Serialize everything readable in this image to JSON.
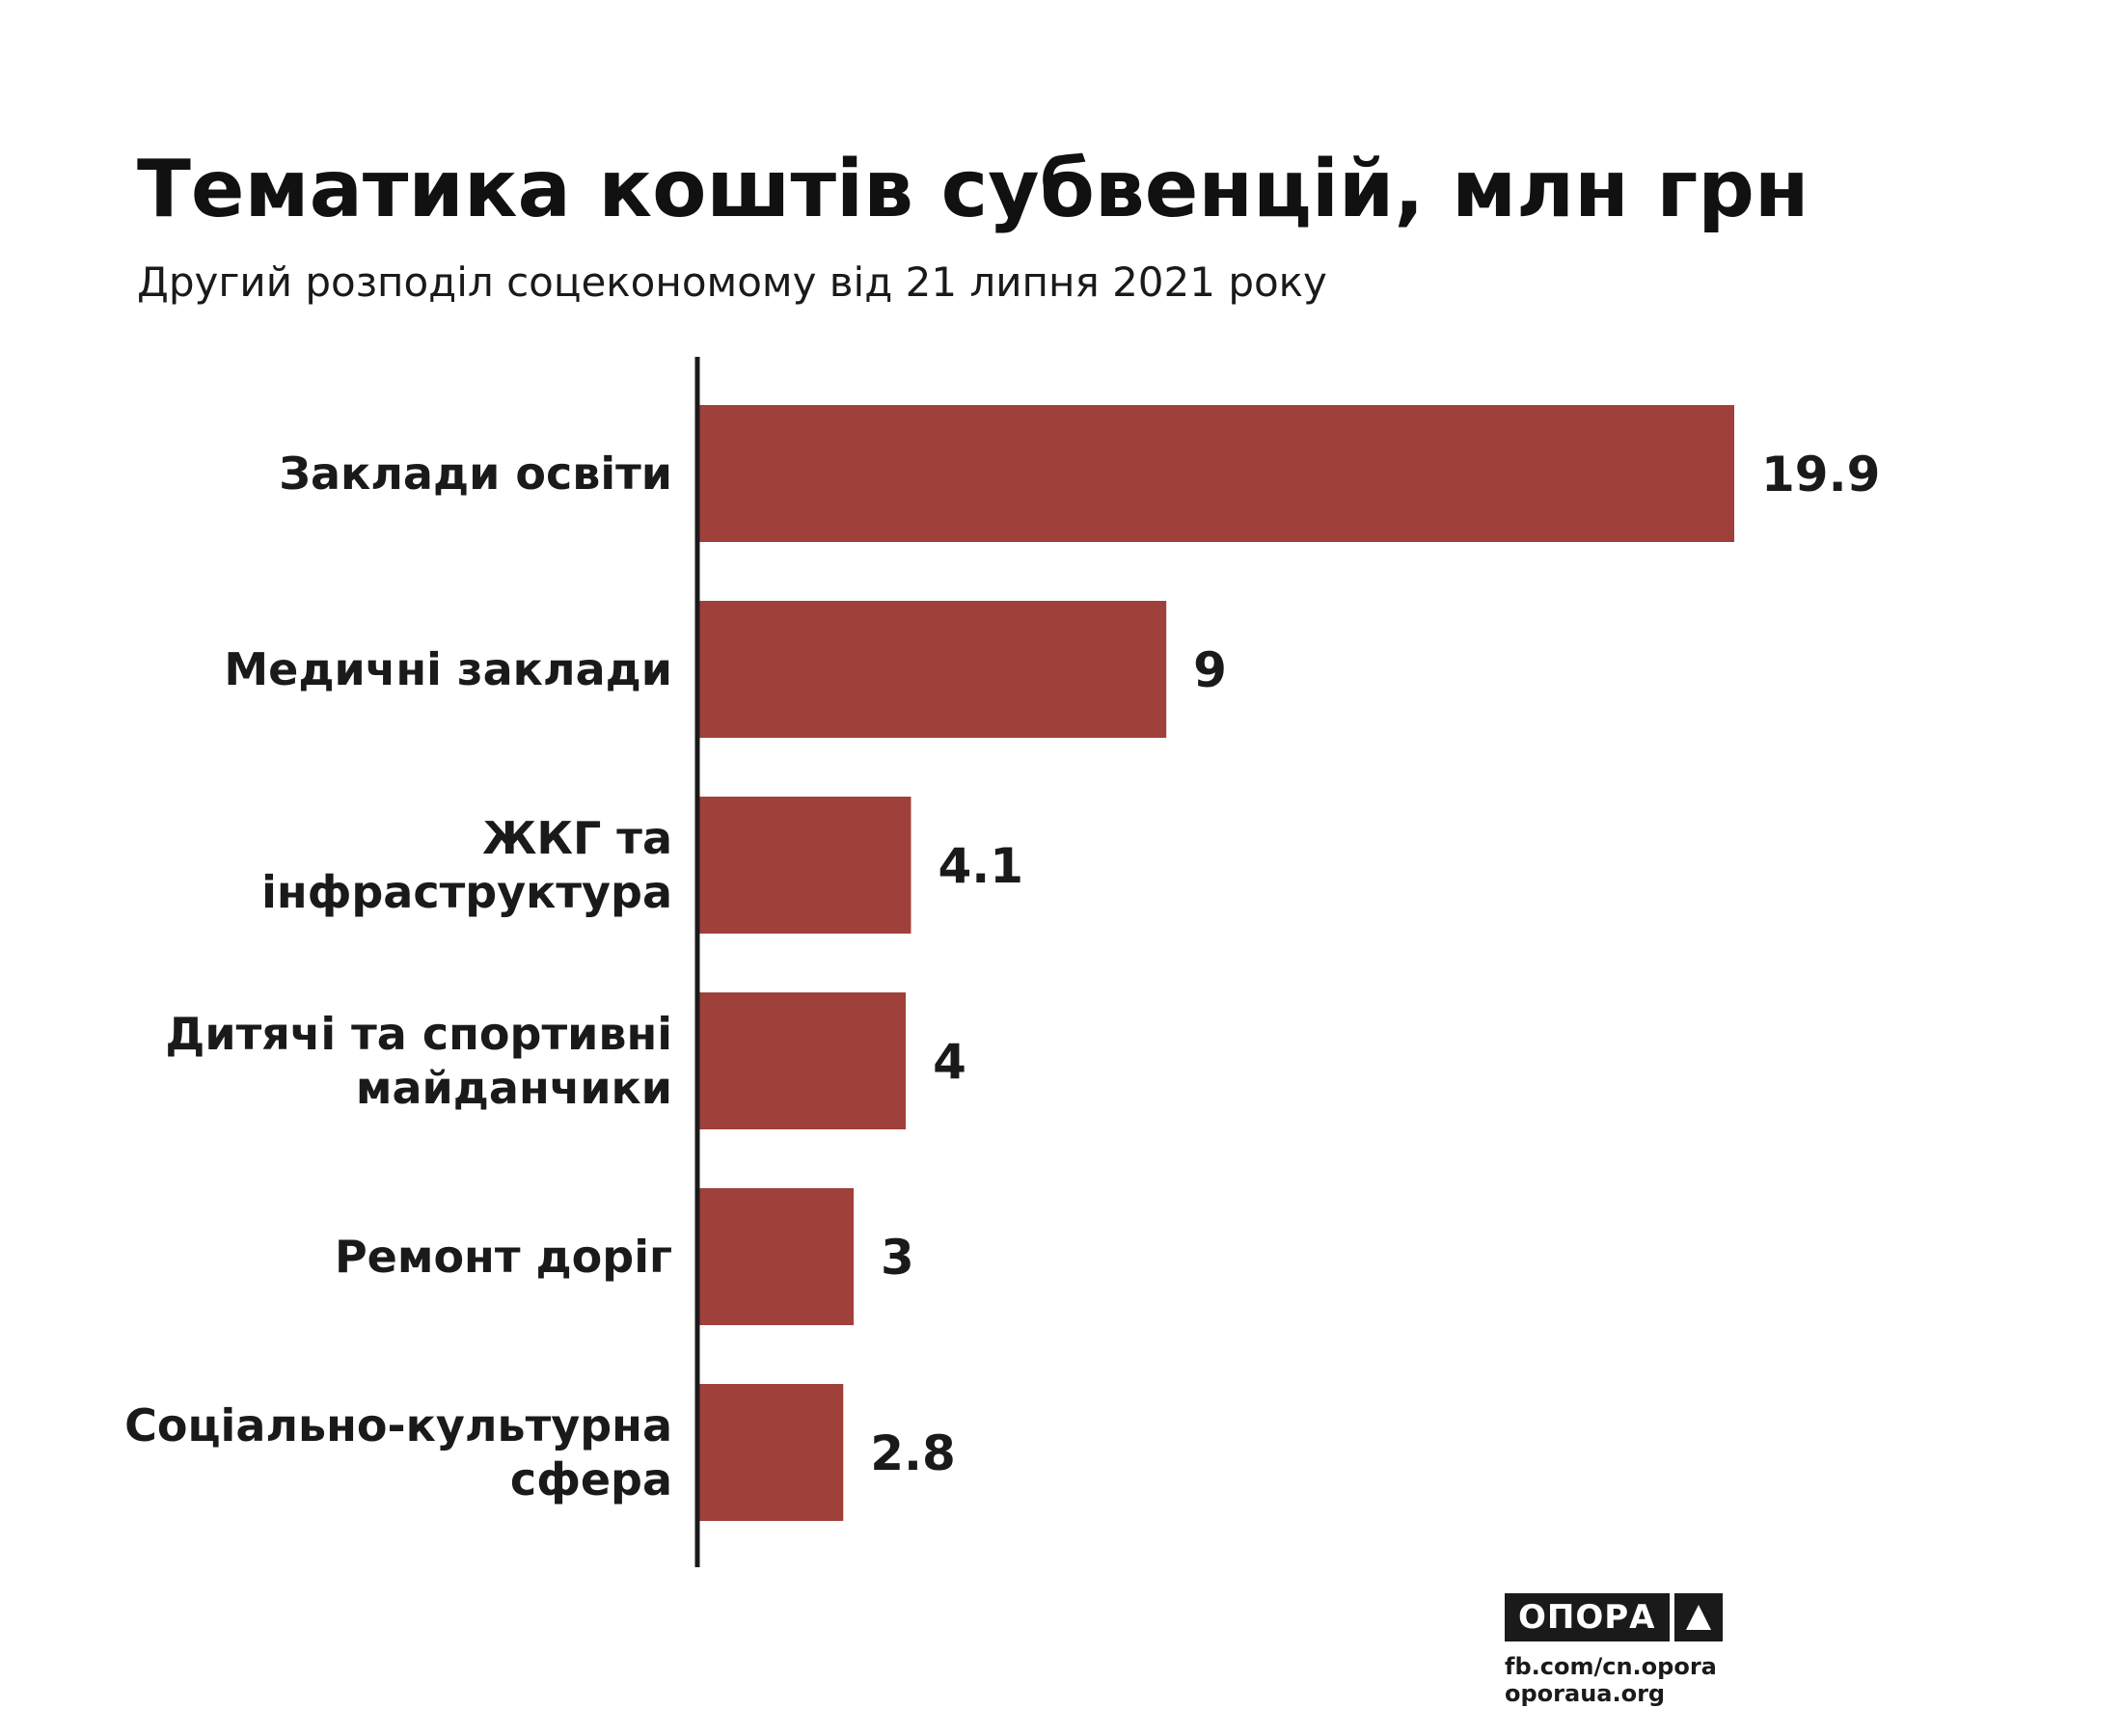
{
  "chart_data": {
    "type": "bar",
    "orientation": "horizontal",
    "title": "Тематика коштів субвенцій, млн грн",
    "subtitle": "Другий розподіл соцекономому від 21 липня 2021 року",
    "categories": [
      [
        "Заклади освіти"
      ],
      [
        "Медичні заклади"
      ],
      [
        "ЖКГ та",
        "інфраструктура"
      ],
      [
        "Дитячі та спортивні",
        "майданчики"
      ],
      [
        "Ремонт доріг"
      ],
      [
        "Соціально-культурна",
        "сфера"
      ]
    ],
    "values": [
      19.9,
      9,
      4.1,
      4,
      3,
      2.8
    ],
    "value_labels": [
      "19.9",
      "9",
      "4.1",
      "4",
      "3",
      "2.8"
    ],
    "xlim": [
      0,
      19.9
    ],
    "grid": false,
    "legend": "none",
    "bar_color": "#a0403a",
    "axis_color": "#1a1a1a"
  },
  "branding": {
    "logo_text": "ОПОРА",
    "logo_icon": "triangle-up-icon",
    "source_fb": "fb.com/cn.opora",
    "source_site": "oporaua.org"
  }
}
